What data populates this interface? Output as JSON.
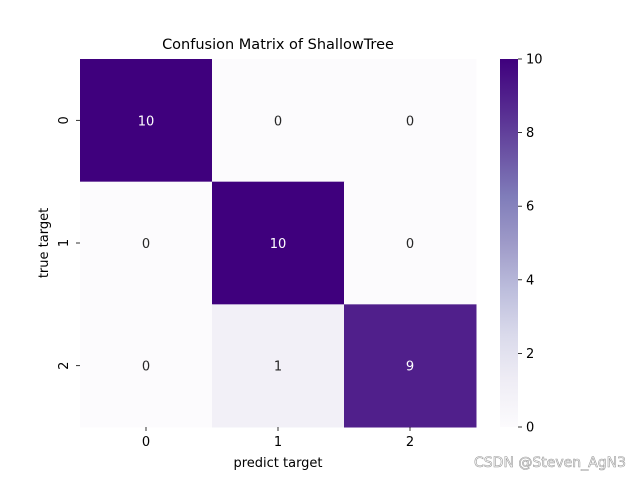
{
  "chart_data": {
    "type": "heatmap",
    "title": "Confusion Matrix of ShallowTree",
    "xlabel": "predict target",
    "ylabel": "true target",
    "x_categories": [
      "0",
      "1",
      "2"
    ],
    "y_categories": [
      "0",
      "1",
      "2"
    ],
    "values": [
      [
        10,
        0,
        0
      ],
      [
        0,
        10,
        0
      ],
      [
        0,
        1,
        9
      ]
    ],
    "colorbar": {
      "range": [
        0,
        10
      ],
      "ticks": [
        "0",
        "2",
        "4",
        "6",
        "8",
        "10"
      ],
      "colormap": "Purples",
      "colors": [
        "#fcfbfd",
        "#efedf5",
        "#dadaeb",
        "#bcbddc",
        "#9e9ac8",
        "#807dba",
        "#6a51a3",
        "#54278f",
        "#3f007d"
      ]
    },
    "grid": false,
    "legend": "colorbar-right"
  },
  "watermark": "CSDN @Steven_AgN3"
}
